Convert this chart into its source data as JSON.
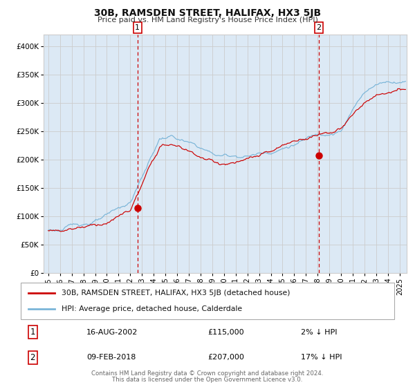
{
  "title": "30B, RAMSDEN STREET, HALIFAX, HX3 5JB",
  "subtitle": "Price paid vs. HM Land Registry's House Price Index (HPI)",
  "ylim": [
    0,
    420000
  ],
  "yticks": [
    0,
    50000,
    100000,
    150000,
    200000,
    250000,
    300000,
    350000,
    400000
  ],
  "ytick_labels": [
    "£0",
    "£50K",
    "£100K",
    "£150K",
    "£200K",
    "£250K",
    "£300K",
    "£350K",
    "£400K"
  ],
  "xlim_start": 1994.6,
  "xlim_end": 2025.6,
  "xticks": [
    1995,
    1996,
    1997,
    1998,
    1999,
    2000,
    2001,
    2002,
    2003,
    2004,
    2005,
    2006,
    2007,
    2008,
    2009,
    2010,
    2011,
    2012,
    2013,
    2014,
    2015,
    2016,
    2017,
    2018,
    2019,
    2020,
    2021,
    2022,
    2023,
    2024,
    2025
  ],
  "marker1_x": 2002.62,
  "marker1_y": 115000,
  "marker2_x": 2018.11,
  "marker2_y": 207000,
  "shade_color": "#dce9f5",
  "hpi_color": "#7ab5d8",
  "price_color": "#cc0000",
  "grid_color": "#cccccc",
  "background_color": "#ffffff",
  "legend_entry1": "30B, RAMSDEN STREET, HALIFAX, HX3 5JB (detached house)",
  "legend_entry2": "HPI: Average price, detached house, Calderdale",
  "table_row1_num": "1",
  "table_row1_date": "16-AUG-2002",
  "table_row1_price": "£115,000",
  "table_row1_hpi": "2% ↓ HPI",
  "table_row2_num": "2",
  "table_row2_date": "09-FEB-2018",
  "table_row2_price": "£207,000",
  "table_row2_hpi": "17% ↓ HPI",
  "footer1": "Contains HM Land Registry data © Crown copyright and database right 2024.",
  "footer2": "This data is licensed under the Open Government Licence v3.0."
}
